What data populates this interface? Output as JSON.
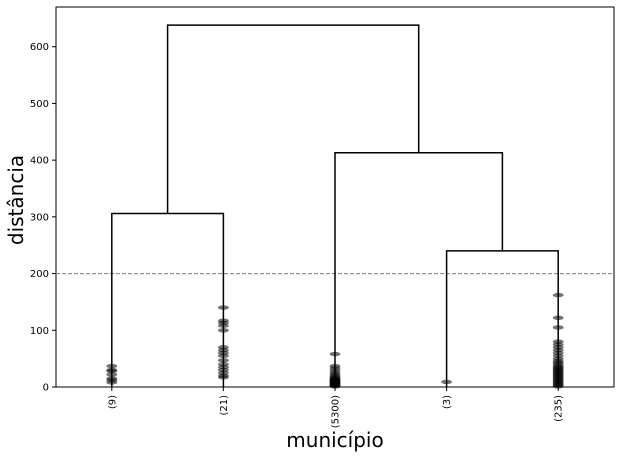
{
  "chart_data": {
    "type": "dendrogram",
    "xlabel": "município",
    "ylabel": "distância",
    "ylim": [
      0,
      670
    ],
    "yticks": [
      0,
      100,
      200,
      300,
      400,
      500,
      600
    ],
    "threshold": 200,
    "leaves": [
      {
        "label": "(9)",
        "height": 0
      },
      {
        "label": "(21)",
        "height": 0
      },
      {
        "label": "(5300)",
        "height": 0
      },
      {
        "label": "(3)",
        "height": 0
      },
      {
        "label": "(235)",
        "height": 0
      }
    ],
    "merges": [
      {
        "left": 0,
        "right": 1,
        "height": 306
      },
      {
        "left": 3,
        "right": 4,
        "height": 240
      },
      {
        "left": 2,
        "right": 6,
        "height": 413
      },
      {
        "left": 5,
        "right": 7,
        "height": 638
      }
    ],
    "leaf_points": [
      [
        8,
        12,
        15,
        22,
        28,
        30,
        37
      ],
      [
        17,
        20,
        25,
        30,
        35,
        40,
        47,
        55,
        60,
        65,
        70,
        100,
        108,
        113,
        117,
        140
      ],
      [
        1,
        2,
        3,
        4,
        5,
        6,
        7,
        8,
        9,
        10,
        11,
        12,
        13,
        14,
        15,
        17,
        19,
        22,
        25,
        29,
        33,
        37,
        58
      ],
      [
        9
      ],
      [
        1,
        3,
        5,
        7,
        9,
        11,
        13,
        15,
        17,
        19,
        21,
        23,
        25,
        27,
        29,
        31,
        33,
        35,
        37,
        40,
        43,
        46,
        50,
        55,
        60,
        65,
        70,
        75,
        80,
        105,
        122,
        162
      ]
    ]
  }
}
